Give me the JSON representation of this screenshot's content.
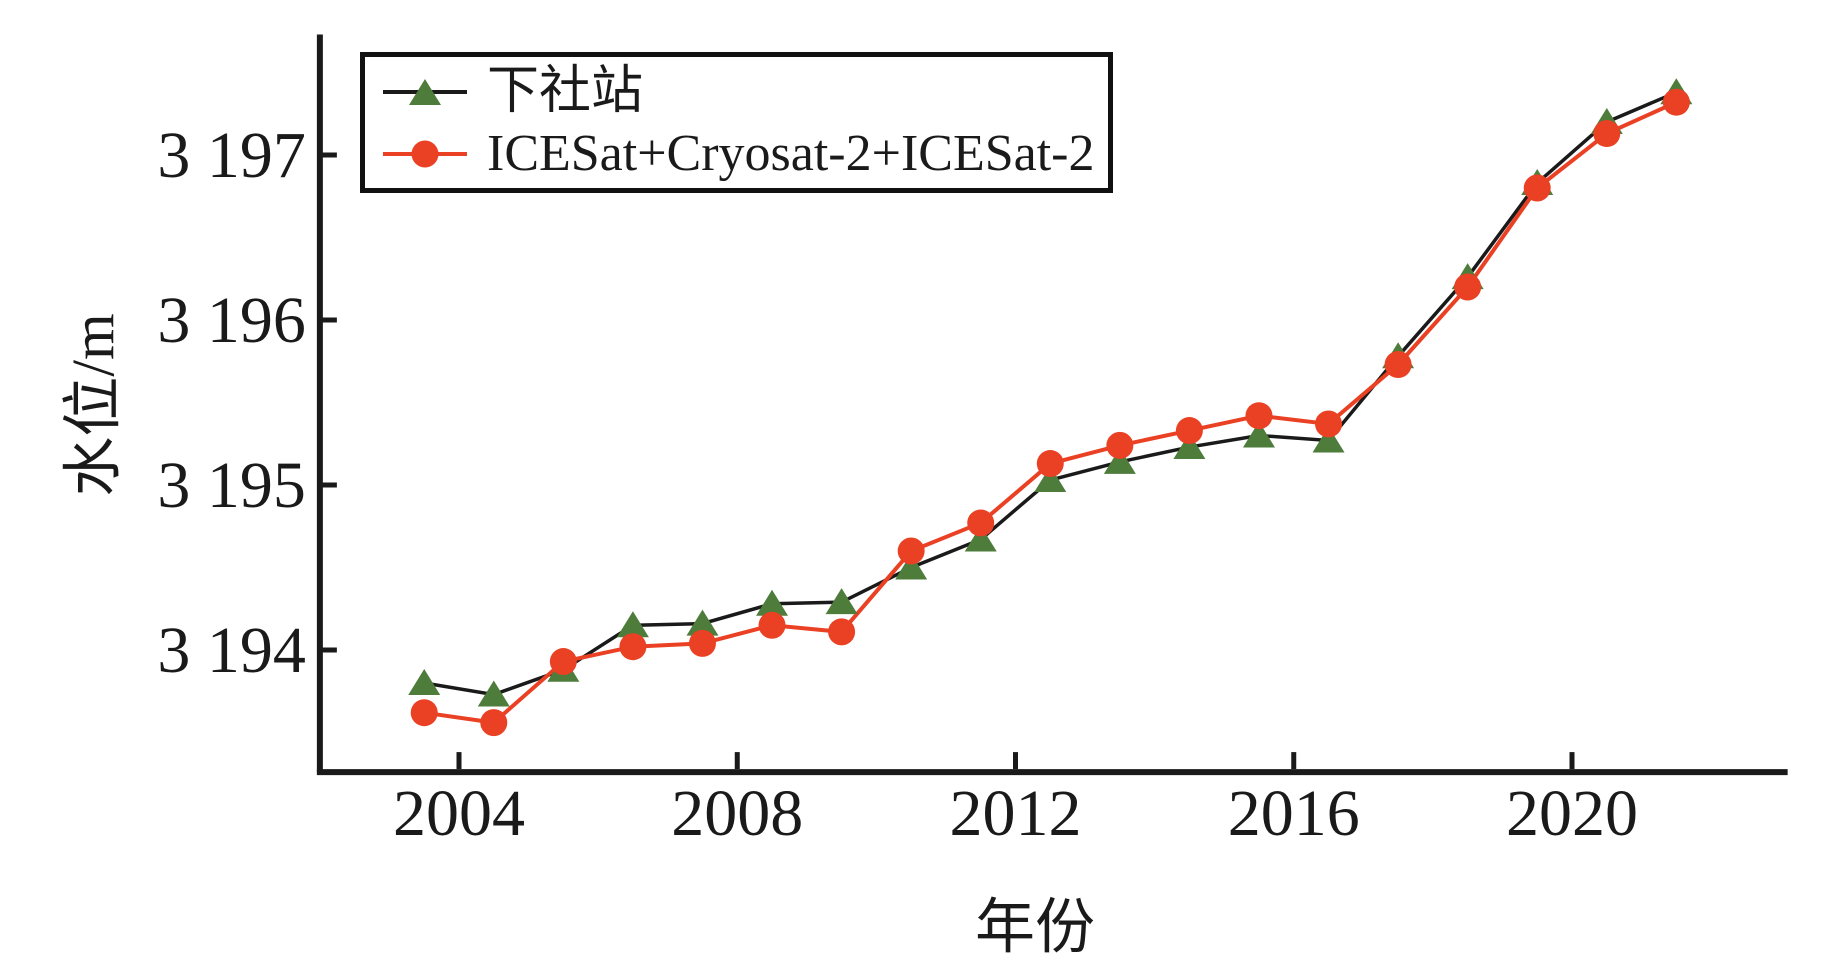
{
  "figure": {
    "background": "#ffffff",
    "text_color": "#1a1a1a"
  },
  "chart_data": {
    "type": "line",
    "title": "",
    "xlabel": "年份",
    "ylabel": "水位/m",
    "x_years": [
      2003,
      2004,
      2005,
      2006,
      2007,
      2008,
      2009,
      2010,
      2011,
      2012,
      2013,
      2014,
      2015,
      2016,
      2017,
      2018,
      2019,
      2020,
      2021
    ],
    "point_offset_years": 0.5,
    "series": [
      {
        "name": "下社站",
        "marker": "triangle-up",
        "color": "#4e7c3b",
        "line_color": "#1a1a1a",
        "values": [
          3193.8,
          3193.73,
          3193.88,
          3194.15,
          3194.16,
          3194.28,
          3194.29,
          3194.5,
          3194.67,
          3195.03,
          3195.14,
          3195.23,
          3195.3,
          3195.27,
          3195.78,
          3196.26,
          3196.83,
          3197.2,
          3197.38
        ]
      },
      {
        "name": "ICESat+Cryosat-2+ICESat-2",
        "marker": "circle",
        "color": "#ea4023",
        "line_color": "#ea4023",
        "values": [
          3193.62,
          3193.56,
          3193.93,
          3194.02,
          3194.04,
          3194.15,
          3194.11,
          3194.6,
          3194.77,
          3195.13,
          3195.24,
          3195.33,
          3195.42,
          3195.37,
          3195.73,
          3196.2,
          3196.8,
          3197.13,
          3197.32
        ]
      }
    ],
    "x_ticks": {
      "values": [
        2004,
        2008,
        2012,
        2016,
        2020
      ],
      "labels": [
        "2004",
        "2008",
        "2012",
        "2016",
        "2020"
      ]
    },
    "y_ticks": {
      "values": [
        3194,
        3195,
        3196,
        3197
      ],
      "labels": [
        "3 194",
        "3 195",
        "3 196",
        "3 197"
      ]
    },
    "xlim": [
      2002,
      2023.1
    ],
    "ylim": [
      3193.26,
      3197.73
    ],
    "grid": false,
    "legend_position": "top-left"
  }
}
